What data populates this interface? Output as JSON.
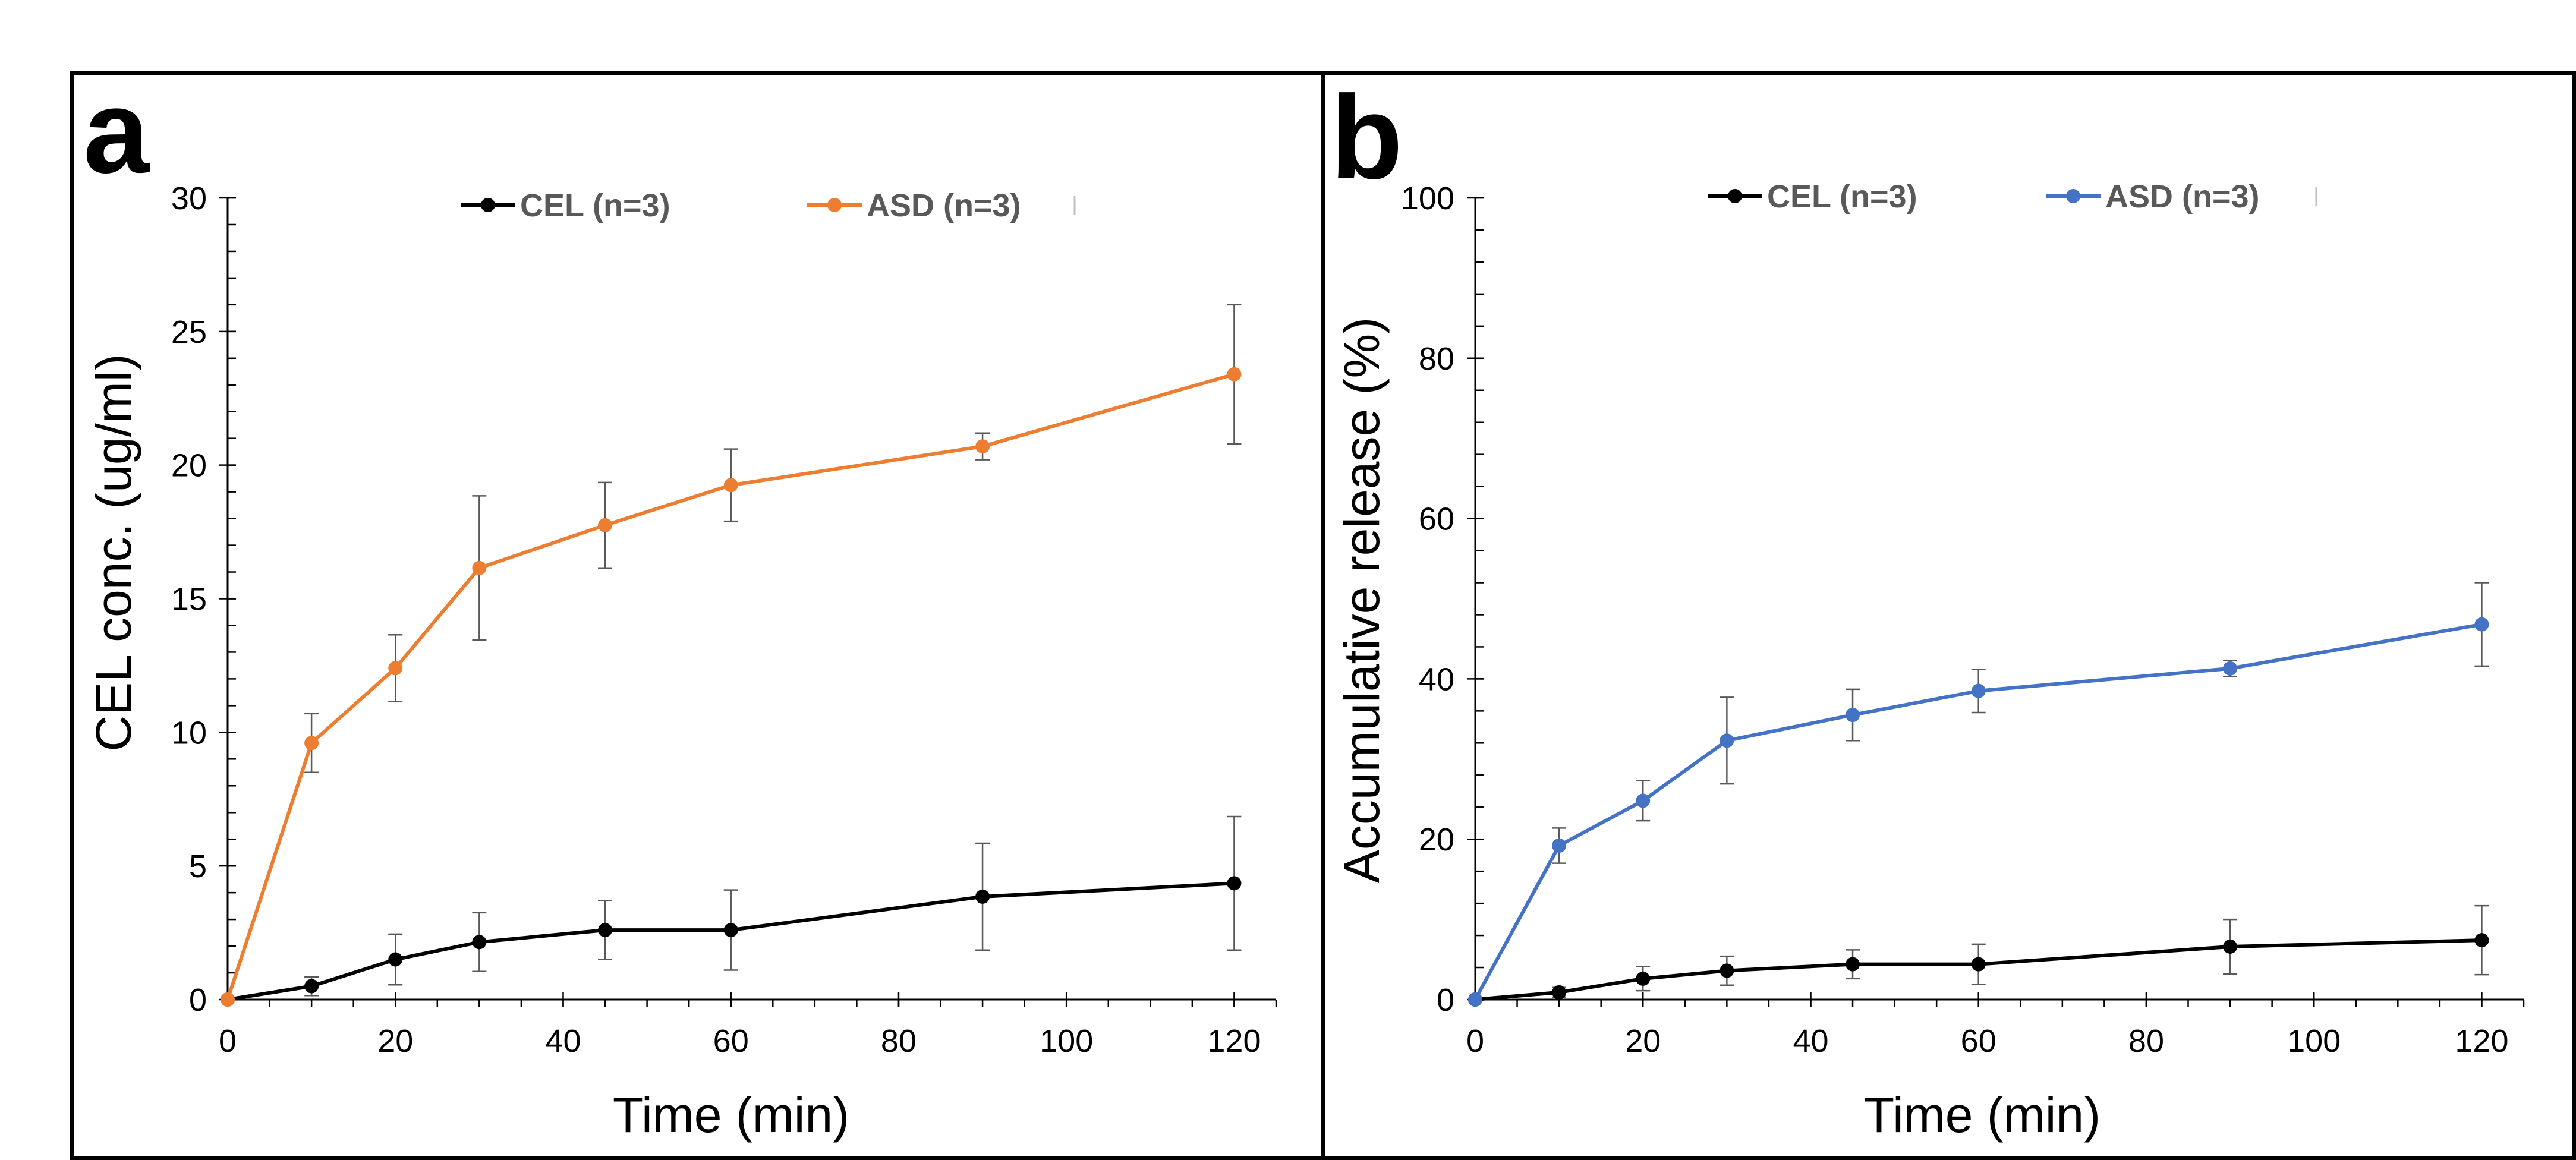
{
  "chart_data": [
    {
      "type": "line",
      "panel_label": "a",
      "xlabel": "Time (min)",
      "ylabel": "CEL conc. (ug/ml)",
      "xlim": [
        0,
        125
      ],
      "ylim": [
        0,
        30
      ],
      "xticks": [
        0,
        20,
        40,
        60,
        80,
        100,
        120
      ],
      "yticks": [
        0,
        5,
        10,
        15,
        20,
        25,
        30
      ],
      "x_minor_step": 5,
      "y_minor_step": 1,
      "grid": false,
      "legend_position": "top",
      "series": [
        {
          "name": "CEL (n=3)",
          "color": "#000000",
          "x": [
            0,
            10,
            20,
            30,
            45,
            60,
            90,
            120
          ],
          "y": [
            0,
            0.5,
            1.5,
            2.15,
            2.6,
            2.6,
            3.85,
            4.35
          ],
          "error": [
            0,
            0.35,
            0.95,
            1.1,
            1.1,
            1.5,
            2.0,
            2.5
          ]
        },
        {
          "name": "ASD (n=3)",
          "color": "#ED7D31",
          "x": [
            0,
            10,
            20,
            30,
            45,
            60,
            90,
            120
          ],
          "y": [
            0,
            9.6,
            12.4,
            16.15,
            17.75,
            19.25,
            20.7,
            23.4
          ],
          "error": [
            0,
            1.1,
            1.25,
            2.7,
            1.6,
            1.35,
            0.5,
            2.6
          ]
        }
      ]
    },
    {
      "type": "line",
      "panel_label": "b",
      "xlabel": "Time (min)",
      "ylabel": "Accumulative release (%)",
      "xlim": [
        0,
        125
      ],
      "ylim": [
        0,
        100
      ],
      "xticks": [
        0,
        20,
        40,
        60,
        80,
        100,
        120
      ],
      "yticks": [
        0,
        20,
        40,
        60,
        80,
        100
      ],
      "x_minor_step": 5,
      "y_minor_step": 4,
      "grid": false,
      "legend_position": "top",
      "series": [
        {
          "name": "CEL (n=3)",
          "color": "#000000",
          "x": [
            0,
            10,
            20,
            30,
            45,
            60,
            90,
            120
          ],
          "y": [
            0,
            0.9,
            2.6,
            3.6,
            4.4,
            4.4,
            6.6,
            7.4
          ],
          "error": [
            0,
            0.6,
            1.5,
            1.8,
            1.8,
            2.5,
            3.4,
            4.3
          ]
        },
        {
          "name": "ASD (n=3)",
          "color": "#4472C4",
          "x": [
            0,
            10,
            20,
            30,
            45,
            60,
            90,
            120
          ],
          "y": [
            0,
            19.2,
            24.8,
            32.3,
            35.5,
            38.5,
            41.3,
            46.8
          ],
          "error": [
            0,
            2.2,
            2.5,
            5.4,
            3.2,
            2.7,
            1.0,
            5.2
          ]
        }
      ]
    }
  ]
}
